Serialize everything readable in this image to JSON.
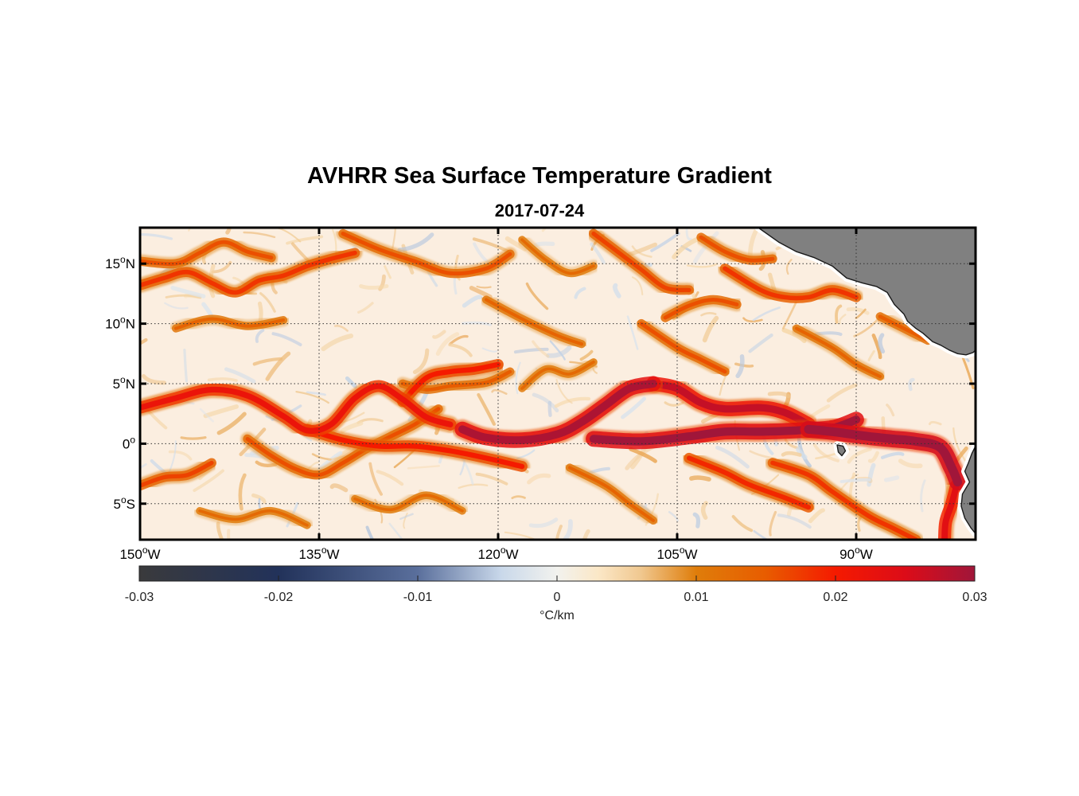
{
  "title": "AVHRR Sea Surface Temperature Gradient",
  "subtitle": "2017-07-24",
  "map": {
    "lon_range": [
      -150,
      -80
    ],
    "lat_range": [
      -8,
      18
    ],
    "lat_ticks": [
      {
        "lat": 15,
        "label": "15",
        "hemi": "N"
      },
      {
        "lat": 10,
        "label": "10",
        "hemi": "N"
      },
      {
        "lat": 5,
        "label": "5",
        "hemi": "N"
      },
      {
        "lat": 0,
        "label": "0",
        "hemi": ""
      },
      {
        "lat": -5,
        "label": "5",
        "hemi": "S"
      }
    ],
    "lon_ticks": [
      {
        "lon": -150,
        "label": "150",
        "hemi": "W"
      },
      {
        "lon": -135,
        "label": "135",
        "hemi": "W"
      },
      {
        "lon": -120,
        "label": "120",
        "hemi": "W"
      },
      {
        "lon": -105,
        "label": "105",
        "hemi": "W"
      },
      {
        "lon": -90,
        "label": "90",
        "hemi": "W"
      }
    ],
    "grid": true,
    "land_color": "#808080",
    "ocean_background": "#fbeee0",
    "fronts": [
      {
        "level": 0.029,
        "points": [
          [
            -123,
            1.2
          ],
          [
            -121,
            0.5
          ],
          [
            -118,
            0.3
          ],
          [
            -115,
            0.8
          ],
          [
            -113,
            1.8
          ],
          [
            -111,
            3.2
          ],
          [
            -109,
            4.6
          ],
          [
            -107,
            5.0
          ]
        ]
      },
      {
        "level": 0.027,
        "points": [
          [
            -107,
            5.0
          ],
          [
            -105,
            4.6
          ],
          [
            -103,
            3.4
          ],
          [
            -101,
            2.9
          ],
          [
            -98,
            3.0
          ],
          [
            -96,
            2.6
          ],
          [
            -94,
            1.6
          ]
        ]
      },
      {
        "level": 0.03,
        "points": [
          [
            -112,
            0.4
          ],
          [
            -108,
            0.2
          ],
          [
            -104,
            0.6
          ],
          [
            -101,
            1.0
          ],
          [
            -98,
            1.0
          ],
          [
            -95,
            1.1
          ],
          [
            -92,
            1.3
          ],
          [
            -90,
            2.0
          ]
        ]
      },
      {
        "level": 0.032,
        "points": [
          [
            -94,
            1.2
          ],
          [
            -92,
            1.0
          ],
          [
            -89,
            0.6
          ],
          [
            -87,
            0.4
          ],
          [
            -85,
            0.2
          ],
          [
            -83,
            -0.3
          ],
          [
            -82,
            -2.0
          ],
          [
            -81.5,
            -3.2
          ]
        ]
      },
      {
        "level": 0.024,
        "points": [
          [
            -81.6,
            -3.5
          ],
          [
            -82,
            -5.0
          ],
          [
            -82.5,
            -6.5
          ],
          [
            -82.6,
            -8.0
          ]
        ]
      },
      {
        "level": 0.022,
        "points": [
          [
            -150,
            3.0
          ],
          [
            -147,
            3.8
          ],
          [
            -144,
            4.5
          ],
          [
            -141,
            4.0
          ],
          [
            -138,
            2.3
          ],
          [
            -136,
            1.1
          ],
          [
            -134,
            1.6
          ],
          [
            -132,
            3.8
          ],
          [
            -130,
            4.8
          ],
          [
            -128,
            3.7
          ],
          [
            -126,
            2.2
          ],
          [
            -124,
            1.6
          ]
        ]
      },
      {
        "level": 0.02,
        "points": [
          [
            -136,
            1.2
          ],
          [
            -133,
            0.3
          ],
          [
            -130,
            -0.2
          ],
          [
            -127,
            -0.2
          ],
          [
            -124,
            -0.6
          ],
          [
            -121,
            -1.2
          ],
          [
            -118,
            -1.9
          ]
        ]
      },
      {
        "level": 0.016,
        "points": [
          [
            -141,
            0.4
          ],
          [
            -139,
            -1.0
          ],
          [
            -137,
            -2.1
          ],
          [
            -135,
            -2.6
          ],
          [
            -133,
            -1.6
          ],
          [
            -131,
            -0.4
          ],
          [
            -129,
            0.6
          ],
          [
            -127,
            1.6
          ],
          [
            -125,
            2.9
          ]
        ]
      },
      {
        "level": 0.02,
        "points": [
          [
            -128,
            3.5
          ],
          [
            -126,
            5.5
          ],
          [
            -124,
            6.0
          ],
          [
            -122,
            6.2
          ],
          [
            -120,
            6.6
          ]
        ]
      },
      {
        "level": 0.015,
        "points": [
          [
            -128,
            5.0
          ],
          [
            -126,
            4.5
          ],
          [
            -124,
            4.8
          ],
          [
            -121,
            5.1
          ],
          [
            -119,
            6.0
          ]
        ]
      },
      {
        "level": 0.017,
        "points": [
          [
            -150,
            -3.5
          ],
          [
            -148,
            -2.8
          ],
          [
            -146,
            -2.6
          ],
          [
            -144,
            -1.6
          ]
        ]
      },
      {
        "level": 0.018,
        "points": [
          [
            -150,
            13.2
          ],
          [
            -148,
            13.8
          ],
          [
            -146,
            14.3
          ],
          [
            -144,
            13.4
          ],
          [
            -142,
            12.6
          ],
          [
            -140,
            13.6
          ],
          [
            -138,
            14.0
          ],
          [
            -136,
            14.8
          ],
          [
            -134,
            15.4
          ],
          [
            -132,
            15.9
          ]
        ]
      },
      {
        "level": 0.016,
        "points": [
          [
            -150,
            15.2
          ],
          [
            -147,
            15.0
          ],
          [
            -145,
            15.9
          ],
          [
            -143,
            16.8
          ],
          [
            -141,
            16.0
          ],
          [
            -139,
            15.5
          ]
        ]
      },
      {
        "level": 0.016,
        "points": [
          [
            -133,
            17.5
          ],
          [
            -130,
            16.2
          ],
          [
            -127,
            15.2
          ],
          [
            -124,
            14.2
          ],
          [
            -121,
            14.6
          ],
          [
            -119,
            15.8
          ]
        ]
      },
      {
        "level": 0.017,
        "points": [
          [
            -112,
            17.5
          ],
          [
            -110,
            16.0
          ],
          [
            -108,
            14.5
          ],
          [
            -106,
            13.0
          ],
          [
            -104,
            12.8
          ]
        ]
      },
      {
        "level": 0.018,
        "points": [
          [
            -101,
            14.6
          ],
          [
            -98,
            12.8
          ],
          [
            -96,
            12.2
          ],
          [
            -94,
            12.2
          ],
          [
            -92,
            12.8
          ],
          [
            -90,
            12.2
          ]
        ]
      },
      {
        "level": 0.016,
        "points": [
          [
            -103,
            17.2
          ],
          [
            -101,
            16.0
          ],
          [
            -99,
            15.3
          ],
          [
            -97,
            15.4
          ]
        ]
      },
      {
        "level": 0.016,
        "points": [
          [
            -106,
            10.5
          ],
          [
            -104,
            11.5
          ],
          [
            -102,
            12.0
          ],
          [
            -100,
            11.6
          ]
        ]
      },
      {
        "level": 0.018,
        "points": [
          [
            -97,
            -1.6
          ],
          [
            -94,
            -2.6
          ],
          [
            -92,
            -4.0
          ],
          [
            -89,
            -6.0
          ],
          [
            -87,
            -7.0
          ],
          [
            -85,
            -8.0
          ]
        ]
      },
      {
        "level": 0.019,
        "points": [
          [
            -104,
            -1.2
          ],
          [
            -101,
            -2.4
          ],
          [
            -99,
            -3.4
          ],
          [
            -96,
            -4.5
          ],
          [
            -94,
            -5.3
          ]
        ]
      },
      {
        "level": 0.014,
        "points": [
          [
            -114,
            -2.0
          ],
          [
            -111,
            -3.5
          ],
          [
            -109,
            -5.0
          ],
          [
            -107,
            -6.4
          ]
        ]
      },
      {
        "level": 0.016,
        "points": [
          [
            -108,
            10.0
          ],
          [
            -105,
            8.0
          ],
          [
            -103,
            7.0
          ],
          [
            -101,
            6.0
          ]
        ]
      },
      {
        "level": 0.014,
        "points": [
          [
            -121,
            12.0
          ],
          [
            -118,
            10.4
          ],
          [
            -115,
            9.0
          ],
          [
            -113,
            8.3
          ]
        ]
      },
      {
        "level": 0.014,
        "points": [
          [
            -95,
            9.6
          ],
          [
            -92,
            8.0
          ],
          [
            -90,
            6.6
          ],
          [
            -88,
            5.6
          ]
        ]
      },
      {
        "level": 0.015,
        "points": [
          [
            -88,
            10.6
          ],
          [
            -86,
            9.6
          ],
          [
            -84,
            8.6
          ]
        ]
      },
      {
        "level": 0.014,
        "points": [
          [
            -147,
            9.6
          ],
          [
            -144,
            10.4
          ],
          [
            -141,
            9.8
          ],
          [
            -138,
            10.3
          ]
        ]
      },
      {
        "level": 0.013,
        "points": [
          [
            -145,
            -5.6
          ],
          [
            -142,
            -6.3
          ],
          [
            -139,
            -5.6
          ],
          [
            -136,
            -6.8
          ]
        ]
      },
      {
        "level": 0.013,
        "points": [
          [
            -132,
            -4.6
          ],
          [
            -129,
            -5.5
          ],
          [
            -126,
            -4.3
          ],
          [
            -123,
            -5.6
          ]
        ]
      },
      {
        "level": 0.013,
        "points": [
          [
            -118,
            4.6
          ],
          [
            -116,
            6.2
          ],
          [
            -114,
            5.8
          ],
          [
            -112,
            6.8
          ]
        ]
      },
      {
        "level": 0.013,
        "points": [
          [
            -118,
            17.0
          ],
          [
            -116,
            15.3
          ],
          [
            -114,
            14.2
          ],
          [
            -112,
            14.8
          ]
        ]
      }
    ],
    "land": [
      {
        "name": "Central America",
        "points": [
          [
            -98.2,
            18
          ],
          [
            -96.5,
            16.8
          ],
          [
            -95,
            16.0
          ],
          [
            -93.5,
            15.5
          ],
          [
            -92.0,
            14.8
          ],
          [
            -90.8,
            13.8
          ],
          [
            -89.5,
            13.4
          ],
          [
            -88.3,
            13.1
          ],
          [
            -87.4,
            12.6
          ],
          [
            -86.8,
            11.6
          ],
          [
            -86.0,
            10.8
          ],
          [
            -85.7,
            10.2
          ],
          [
            -85.0,
            9.6
          ],
          [
            -84.4,
            9.2
          ],
          [
            -83.6,
            8.5
          ],
          [
            -82.9,
            8.2
          ],
          [
            -82.2,
            7.8
          ],
          [
            -81.5,
            7.5
          ],
          [
            -80.8,
            7.4
          ],
          [
            -80.2,
            7.6
          ],
          [
            -80.0,
            7.8
          ],
          [
            -80.0,
            18
          ]
        ]
      },
      {
        "name": "Galapagos",
        "points": [
          [
            -91.6,
            -0.1
          ],
          [
            -91.1,
            -0.2
          ],
          [
            -90.9,
            -0.6
          ],
          [
            -91.2,
            -1.0
          ],
          [
            -91.5,
            -0.7
          ]
        ]
      },
      {
        "name": "South America",
        "points": [
          [
            -80.0,
            -0.2
          ],
          [
            -80.3,
            -0.8
          ],
          [
            -80.6,
            -1.6
          ],
          [
            -80.9,
            -2.3
          ],
          [
            -80.5,
            -3.2
          ],
          [
            -81.1,
            -4.2
          ],
          [
            -81.2,
            -5.2
          ],
          [
            -80.9,
            -6.2
          ],
          [
            -80.4,
            -7.0
          ],
          [
            -80.0,
            -7.5
          ]
        ]
      }
    ]
  },
  "colorbar": {
    "min": -0.03,
    "max": 0.03,
    "unit": "°C/km",
    "ticks": [
      {
        "value": -0.03,
        "label": "-0.03"
      },
      {
        "value": -0.02,
        "label": "-0.02"
      },
      {
        "value": -0.01,
        "label": "-0.01"
      },
      {
        "value": 0,
        "label": "0"
      },
      {
        "value": 0.01,
        "label": "0.01"
      },
      {
        "value": 0.02,
        "label": "0.02"
      },
      {
        "value": 0.03,
        "label": "0.03"
      }
    ],
    "stops": [
      {
        "value": -0.03,
        "color": "#3a3a3c"
      },
      {
        "value": -0.02,
        "color": "#22325a"
      },
      {
        "value": -0.01,
        "color": "#5a6f9c"
      },
      {
        "value": -0.004,
        "color": "#c9d8ea"
      },
      {
        "value": 0,
        "color": "#f2f2ee"
      },
      {
        "value": 0.003,
        "color": "#fbe7c6"
      },
      {
        "value": 0.006,
        "color": "#f0c890"
      },
      {
        "value": 0.01,
        "color": "#df7d0a"
      },
      {
        "value": 0.015,
        "color": "#e85c00"
      },
      {
        "value": 0.02,
        "color": "#f51a00"
      },
      {
        "value": 0.025,
        "color": "#dc0c18"
      },
      {
        "value": 0.03,
        "color": "#a0163a"
      }
    ]
  }
}
